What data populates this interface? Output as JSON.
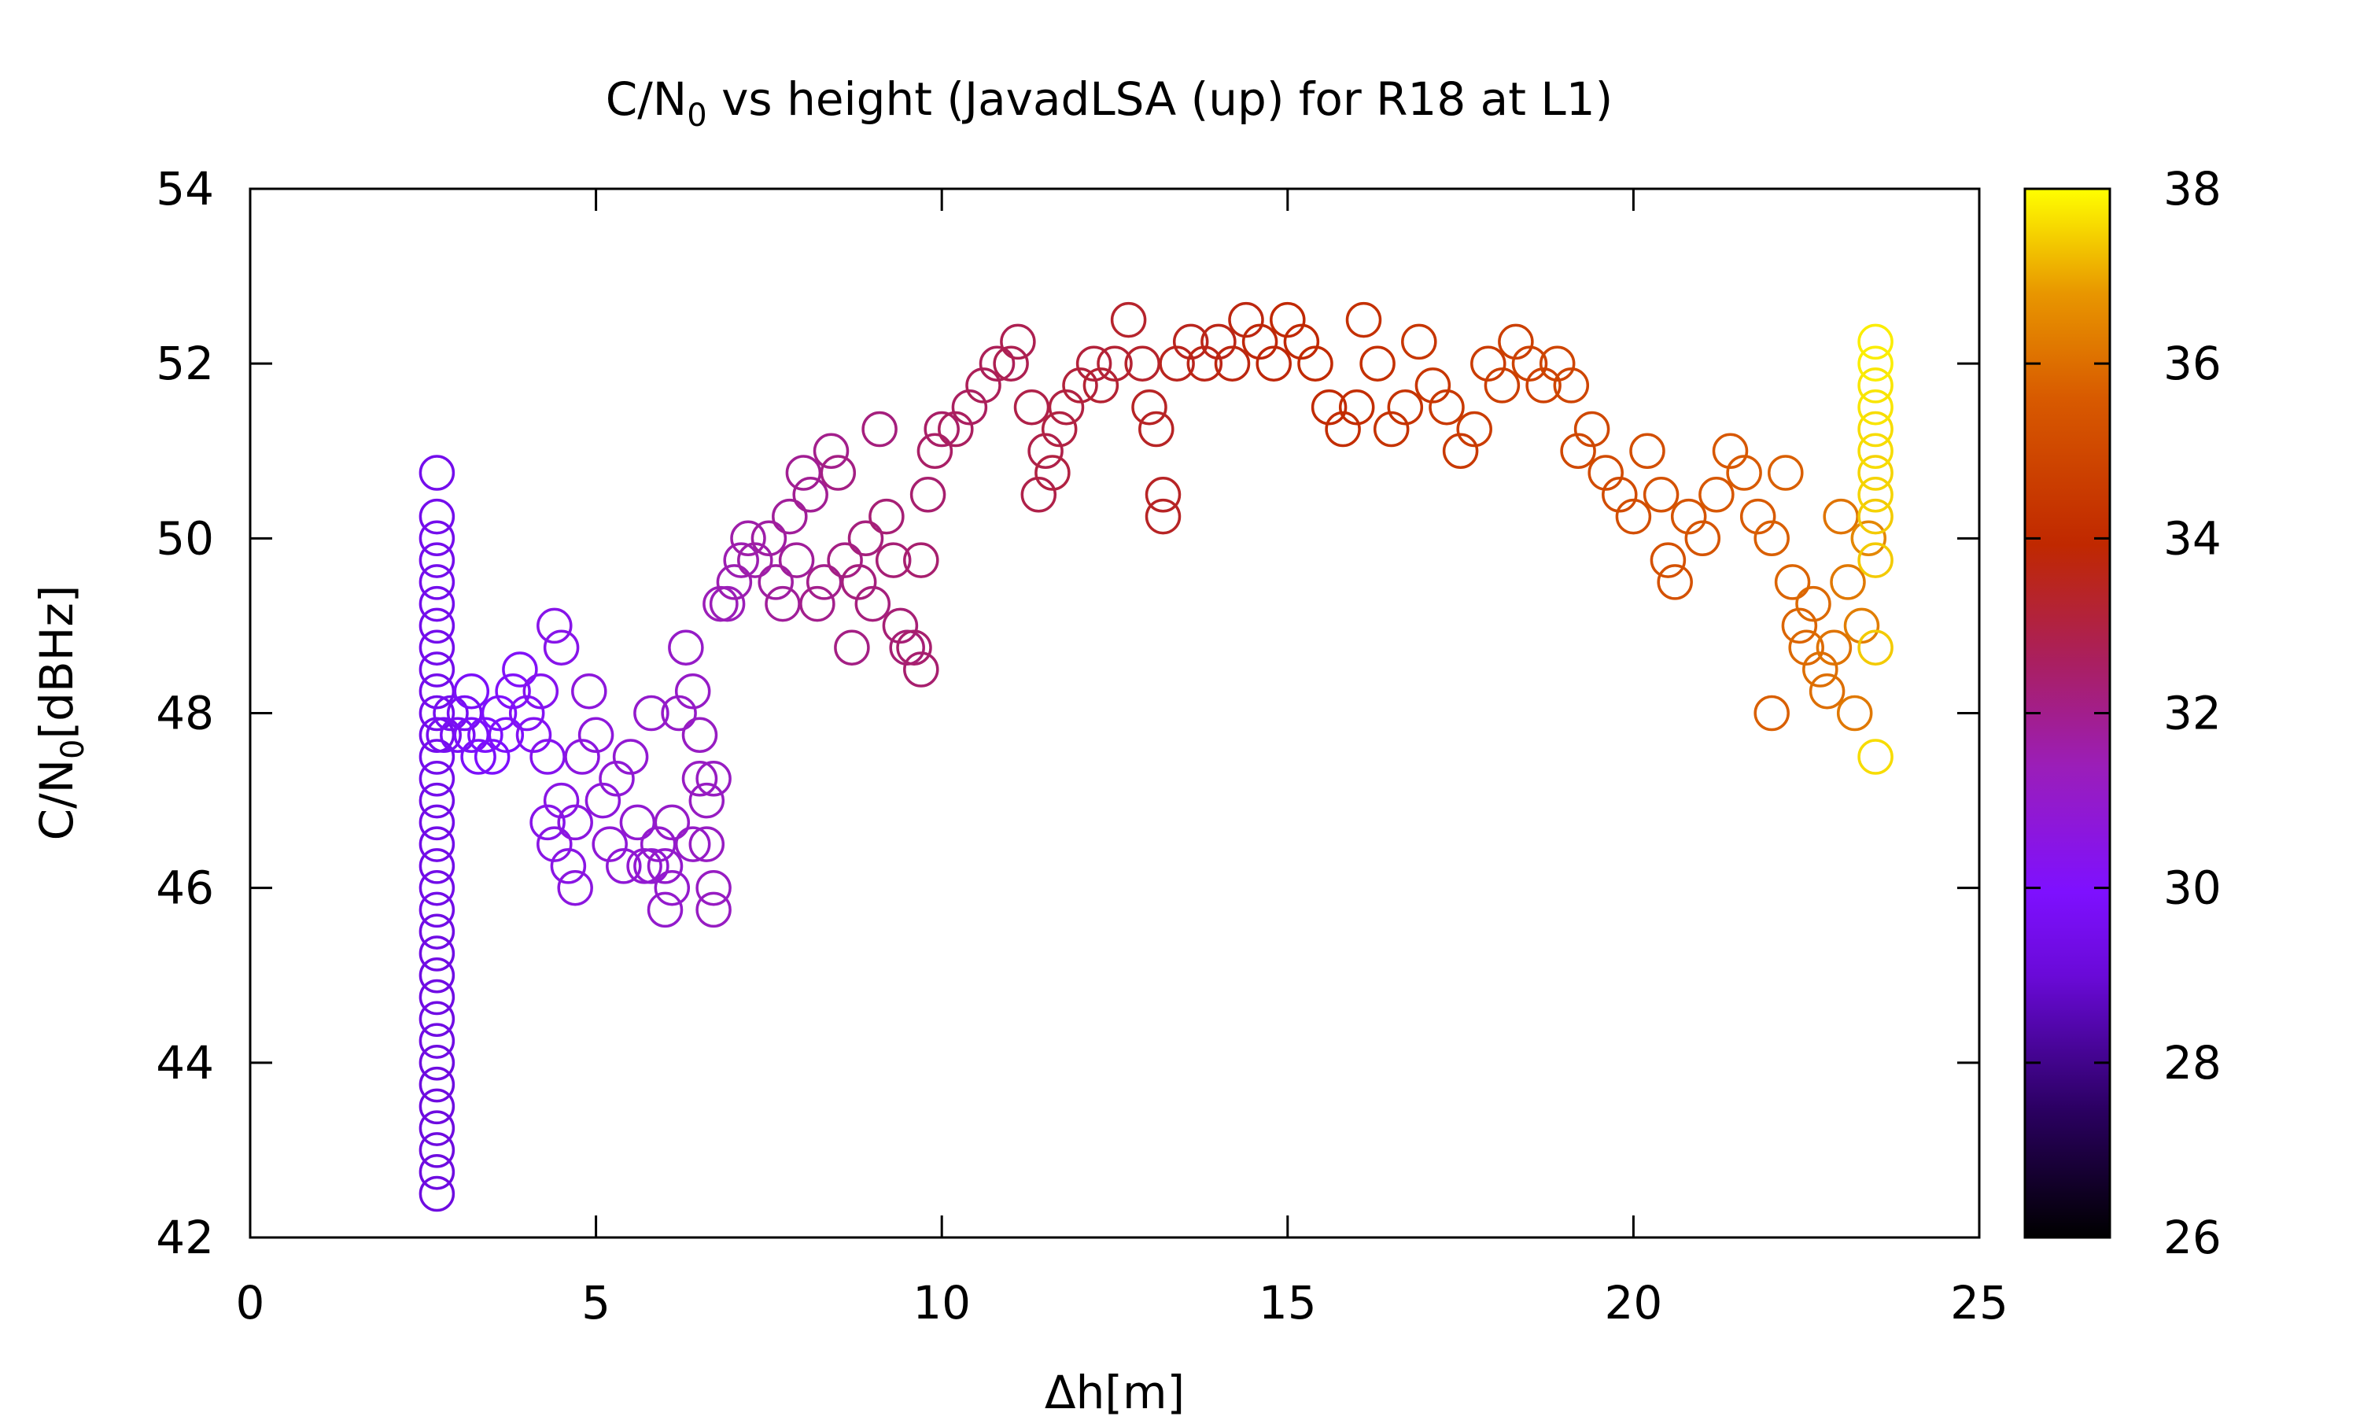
{
  "chart_data": {
    "type": "scatter",
    "title_main": "C/N",
    "title_sub": "0",
    "title_rest": " vs height (JavadLSA (up) for R18 at L1)",
    "xlabel": "Δh[m]",
    "ylabel_main": "C/N",
    "ylabel_sub": "0",
    "ylabel_rest": "[dBHz]",
    "xlim": [
      0,
      25
    ],
    "ylim": [
      42,
      54
    ],
    "xticks": [
      0,
      5,
      10,
      15,
      20,
      25
    ],
    "yticks": [
      42,
      44,
      46,
      48,
      50,
      52,
      54
    ],
    "colorbar": {
      "range": [
        26,
        38
      ],
      "ticks": [
        26,
        28,
        30,
        32,
        34,
        36,
        38
      ],
      "palette": "black-purple-red-orange-yellow"
    },
    "marker": "open-circle",
    "points": [
      [
        2.7,
        42.5,
        29.2
      ],
      [
        2.7,
        42.75,
        29.2
      ],
      [
        2.7,
        43.0,
        29.2
      ],
      [
        2.7,
        43.25,
        29.2
      ],
      [
        2.7,
        43.5,
        29.2
      ],
      [
        2.7,
        43.75,
        29.2
      ],
      [
        2.7,
        44.0,
        29.2
      ],
      [
        2.7,
        44.25,
        29.3
      ],
      [
        2.7,
        44.5,
        29.3
      ],
      [
        2.7,
        44.75,
        29.3
      ],
      [
        2.7,
        45.0,
        29.3
      ],
      [
        2.7,
        45.25,
        29.3
      ],
      [
        2.7,
        45.5,
        29.3
      ],
      [
        2.7,
        45.75,
        29.4
      ],
      [
        2.7,
        46.0,
        29.4
      ],
      [
        2.7,
        46.25,
        29.4
      ],
      [
        2.7,
        46.5,
        29.4
      ],
      [
        2.7,
        46.75,
        29.4
      ],
      [
        2.7,
        47.0,
        29.4
      ],
      [
        2.7,
        47.25,
        29.5
      ],
      [
        2.7,
        47.5,
        29.5
      ],
      [
        2.7,
        47.75,
        29.5
      ],
      [
        2.7,
        48.0,
        29.5
      ],
      [
        2.7,
        48.25,
        29.5
      ],
      [
        2.7,
        48.5,
        29.5
      ],
      [
        2.7,
        48.75,
        29.5
      ],
      [
        2.7,
        49.0,
        29.5
      ],
      [
        2.7,
        49.25,
        29.5
      ],
      [
        2.7,
        49.5,
        29.5
      ],
      [
        2.7,
        49.75,
        29.5
      ],
      [
        2.7,
        50.0,
        29.5
      ],
      [
        2.7,
        50.25,
        29.5
      ],
      [
        2.7,
        50.75,
        29.5
      ],
      [
        2.8,
        47.75,
        29.6
      ],
      [
        2.9,
        48.0,
        29.6
      ],
      [
        3.0,
        47.75,
        29.7
      ],
      [
        3.1,
        48.0,
        29.7
      ],
      [
        3.2,
        48.25,
        29.8
      ],
      [
        3.2,
        47.75,
        29.8
      ],
      [
        3.3,
        47.5,
        29.8
      ],
      [
        3.4,
        47.75,
        29.9
      ],
      [
        3.5,
        47.5,
        29.9
      ],
      [
        3.6,
        48.0,
        30.0
      ],
      [
        3.7,
        47.75,
        30.0
      ],
      [
        3.8,
        48.25,
        30.1
      ],
      [
        3.9,
        48.5,
        30.1
      ],
      [
        4.0,
        48.0,
        30.2
      ],
      [
        4.1,
        47.75,
        30.2
      ],
      [
        4.2,
        48.25,
        30.3
      ],
      [
        4.3,
        47.5,
        30.3
      ],
      [
        4.4,
        49.0,
        30.4
      ],
      [
        4.5,
        48.75,
        30.4
      ],
      [
        4.3,
        46.75,
        30.4
      ],
      [
        4.4,
        46.5,
        30.5
      ],
      [
        4.5,
        47.0,
        30.5
      ],
      [
        4.6,
        46.25,
        30.5
      ],
      [
        4.7,
        46.75,
        30.6
      ],
      [
        4.7,
        46.0,
        30.6
      ],
      [
        4.8,
        47.5,
        30.6
      ],
      [
        4.9,
        48.25,
        30.7
      ],
      [
        5.0,
        47.75,
        30.7
      ],
      [
        5.1,
        47.0,
        30.7
      ],
      [
        5.2,
        46.5,
        30.8
      ],
      [
        5.3,
        47.25,
        30.8
      ],
      [
        5.4,
        46.25,
        30.8
      ],
      [
        5.5,
        47.5,
        30.9
      ],
      [
        5.6,
        46.75,
        30.9
      ],
      [
        5.7,
        46.25,
        30.9
      ],
      [
        5.8,
        48.0,
        31.0
      ],
      [
        5.9,
        46.5,
        31.0
      ],
      [
        6.0,
        45.75,
        31.0
      ],
      [
        6.0,
        46.25,
        31.0
      ],
      [
        6.1,
        46.75,
        31.1
      ],
      [
        6.2,
        48.0,
        31.1
      ],
      [
        6.3,
        48.75,
        31.1
      ],
      [
        6.4,
        48.25,
        31.1
      ],
      [
        6.5,
        47.75,
        31.2
      ],
      [
        6.5,
        47.25,
        31.2
      ],
      [
        6.6,
        47.0,
        31.2
      ],
      [
        6.6,
        46.5,
        31.2
      ],
      [
        6.7,
        46.0,
        31.2
      ],
      [
        6.7,
        45.75,
        31.2
      ],
      [
        6.7,
        47.25,
        31.2
      ],
      [
        5.8,
        46.25,
        30.9
      ],
      [
        6.1,
        46.0,
        31.0
      ],
      [
        6.4,
        46.5,
        31.1
      ],
      [
        6.8,
        49.25,
        31.4
      ],
      [
        6.9,
        49.25,
        31.4
      ],
      [
        7.0,
        49.5,
        31.5
      ],
      [
        7.1,
        49.75,
        31.5
      ],
      [
        7.2,
        50.0,
        31.6
      ],
      [
        7.3,
        49.75,
        31.6
      ],
      [
        7.5,
        50.0,
        31.7
      ],
      [
        7.6,
        49.5,
        31.7
      ],
      [
        7.7,
        49.25,
        31.8
      ],
      [
        7.8,
        50.25,
        31.8
      ],
      [
        7.9,
        49.75,
        31.8
      ],
      [
        8.0,
        50.75,
        31.9
      ],
      [
        8.1,
        50.5,
        31.9
      ],
      [
        8.2,
        49.25,
        32.0
      ],
      [
        8.3,
        49.5,
        32.0
      ],
      [
        8.4,
        51.0,
        32.0
      ],
      [
        8.5,
        50.75,
        32.1
      ],
      [
        8.6,
        49.75,
        32.1
      ],
      [
        8.7,
        48.75,
        32.1
      ],
      [
        8.8,
        49.5,
        32.2
      ],
      [
        8.9,
        50.0,
        32.2
      ],
      [
        9.0,
        49.25,
        32.2
      ],
      [
        9.1,
        51.25,
        32.2
      ],
      [
        9.2,
        50.25,
        32.3
      ],
      [
        9.3,
        49.75,
        32.3
      ],
      [
        9.4,
        49.0,
        32.3
      ],
      [
        9.5,
        48.75,
        32.3
      ],
      [
        9.6,
        48.75,
        32.4
      ],
      [
        9.7,
        48.5,
        32.4
      ],
      [
        9.7,
        49.75,
        32.4
      ],
      [
        9.8,
        50.5,
        32.4
      ],
      [
        9.9,
        51.0,
        32.5
      ],
      [
        10.0,
        51.25,
        32.5
      ],
      [
        10.2,
        51.25,
        32.6
      ],
      [
        10.4,
        51.5,
        32.6
      ],
      [
        10.6,
        51.75,
        32.7
      ],
      [
        10.8,
        52.0,
        32.7
      ],
      [
        11.0,
        52.0,
        32.8
      ],
      [
        11.1,
        52.25,
        32.8
      ],
      [
        11.3,
        51.5,
        32.9
      ],
      [
        11.4,
        50.5,
        32.9
      ],
      [
        11.5,
        51.0,
        32.9
      ],
      [
        11.6,
        50.75,
        33.0
      ],
      [
        11.7,
        51.25,
        33.0
      ],
      [
        11.8,
        51.5,
        33.0
      ],
      [
        12.0,
        51.75,
        33.1
      ],
      [
        12.2,
        52.0,
        33.1
      ],
      [
        12.3,
        51.75,
        33.2
      ],
      [
        12.5,
        52.0,
        33.2
      ],
      [
        12.7,
        52.5,
        33.3
      ],
      [
        12.9,
        52.0,
        33.3
      ],
      [
        13.0,
        51.5,
        33.4
      ],
      [
        13.1,
        51.25,
        33.4
      ],
      [
        13.2,
        50.5,
        33.4
      ],
      [
        13.2,
        50.25,
        33.4
      ],
      [
        13.4,
        52.0,
        33.5
      ],
      [
        13.6,
        52.25,
        33.5
      ],
      [
        13.8,
        52.0,
        33.6
      ],
      [
        14.0,
        52.25,
        33.6
      ],
      [
        14.2,
        52.0,
        33.7
      ],
      [
        14.4,
        52.5,
        33.7
      ],
      [
        14.6,
        52.25,
        33.8
      ],
      [
        14.8,
        52.0,
        33.8
      ],
      [
        15.0,
        52.5,
        33.9
      ],
      [
        15.2,
        52.25,
        33.9
      ],
      [
        15.4,
        52.0,
        34.0
      ],
      [
        15.6,
        51.5,
        34.0
      ],
      [
        15.8,
        51.25,
        34.1
      ],
      [
        16.0,
        51.5,
        34.1
      ],
      [
        16.1,
        52.5,
        34.2
      ],
      [
        16.3,
        52.0,
        34.2
      ],
      [
        16.5,
        51.25,
        34.3
      ],
      [
        16.7,
        51.5,
        34.3
      ],
      [
        16.9,
        52.25,
        34.4
      ],
      [
        17.1,
        51.75,
        34.4
      ],
      [
        17.3,
        51.5,
        34.5
      ],
      [
        17.5,
        51.0,
        34.5
      ],
      [
        17.7,
        51.25,
        34.6
      ],
      [
        17.9,
        52.0,
        34.6
      ],
      [
        18.1,
        51.75,
        34.7
      ],
      [
        18.3,
        52.25,
        34.7
      ],
      [
        18.5,
        52.0,
        34.8
      ],
      [
        18.7,
        51.75,
        34.8
      ],
      [
        18.9,
        52.0,
        34.9
      ],
      [
        19.1,
        51.75,
        34.9
      ],
      [
        19.2,
        51.0,
        35.0
      ],
      [
        19.4,
        51.25,
        35.0
      ],
      [
        19.6,
        50.75,
        35.1
      ],
      [
        19.8,
        50.5,
        35.1
      ],
      [
        20.0,
        50.25,
        35.2
      ],
      [
        20.2,
        51.0,
        35.2
      ],
      [
        20.4,
        50.5,
        35.3
      ],
      [
        20.5,
        49.75,
        35.3
      ],
      [
        20.6,
        49.5,
        35.3
      ],
      [
        20.8,
        50.25,
        35.4
      ],
      [
        21.0,
        50.0,
        35.4
      ],
      [
        21.2,
        50.5,
        35.5
      ],
      [
        21.4,
        51.0,
        35.5
      ],
      [
        21.6,
        50.75,
        35.6
      ],
      [
        21.8,
        50.25,
        35.6
      ],
      [
        22.0,
        50.0,
        35.7
      ],
      [
        22.0,
        48.0,
        35.7
      ],
      [
        22.2,
        50.75,
        35.7
      ],
      [
        22.3,
        49.5,
        35.8
      ],
      [
        22.4,
        49.0,
        35.8
      ],
      [
        22.5,
        48.75,
        35.9
      ],
      [
        22.6,
        49.25,
        35.9
      ],
      [
        22.7,
        48.5,
        36.0
      ],
      [
        22.8,
        48.25,
        36.0
      ],
      [
        22.9,
        48.75,
        36.1
      ],
      [
        23.0,
        50.25,
        36.1
      ],
      [
        23.1,
        49.5,
        36.2
      ],
      [
        23.2,
        48.0,
        36.2
      ],
      [
        23.3,
        49.0,
        36.3
      ],
      [
        23.4,
        50.0,
        36.5
      ],
      [
        23.5,
        47.5,
        37.6
      ],
      [
        23.5,
        48.75,
        37.4
      ],
      [
        23.5,
        49.75,
        37.4
      ],
      [
        23.5,
        50.25,
        37.4
      ],
      [
        23.5,
        50.5,
        37.5
      ],
      [
        23.5,
        50.75,
        37.5
      ],
      [
        23.5,
        51.0,
        37.6
      ],
      [
        23.5,
        51.25,
        37.6
      ],
      [
        23.5,
        51.5,
        37.7
      ],
      [
        23.5,
        51.75,
        37.7
      ],
      [
        23.5,
        52.0,
        37.8
      ],
      [
        23.5,
        52.25,
        37.8
      ]
    ]
  }
}
